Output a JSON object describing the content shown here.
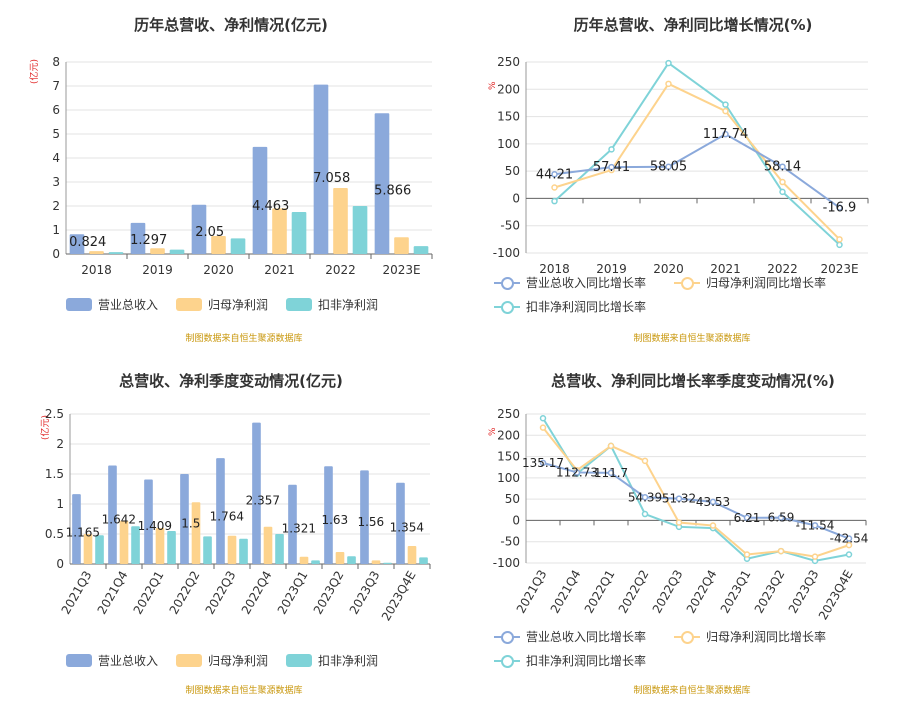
{
  "source_note": "制图数据来自恒生聚源数据库",
  "colors": {
    "revenue": "#8ba9db",
    "net_profit": "#fdd38d",
    "deducted_profit": "#7fd3d8",
    "growth_revenue": "#8ba9db",
    "growth_net": "#fdd38d",
    "growth_deducted": "#7fd3d8",
    "unit_label": "#e02020",
    "source": "#c8960a"
  },
  "chart_data": [
    {
      "id": "annual_values",
      "type": "bar",
      "title": "历年总营收、净利情况(亿元)",
      "ylabel": "(亿元)",
      "categories": [
        "2018",
        "2019",
        "2020",
        "2021",
        "2022",
        "2023E"
      ],
      "series": [
        {
          "name": "营业总收入",
          "values": [
            0.824,
            1.297,
            2.05,
            4.463,
            7.058,
            5.866
          ],
          "labels": [
            "0.824",
            "1.297",
            "2.05",
            "4.463",
            "7.058",
            "5.866"
          ]
        },
        {
          "name": "归母净利润",
          "values": [
            0.12,
            0.24,
            0.75,
            1.9,
            2.75,
            0.7
          ]
        },
        {
          "name": "扣非净利润",
          "values": [
            0.08,
            0.18,
            0.65,
            1.75,
            2.0,
            0.33
          ]
        }
      ],
      "ylim": [
        0,
        8
      ],
      "yticks": [
        0,
        1,
        2,
        3,
        4,
        5,
        6,
        7,
        8
      ],
      "grid": true,
      "legend": "bottom"
    },
    {
      "id": "annual_growth",
      "type": "line",
      "title": "历年总营收、净利同比增长情况(%)",
      "ylabel": "%",
      "categories": [
        "2018",
        "2019",
        "2020",
        "2021",
        "2022",
        "2023E"
      ],
      "series": [
        {
          "name": "营业总收入同比增长率",
          "values": [
            44.21,
            57.41,
            58.05,
            117.74,
            58.14,
            -16.9
          ],
          "labels": [
            "44.21",
            "57.41",
            "58.05",
            "117.74",
            "58.14",
            "-16.9"
          ]
        },
        {
          "name": "归母净利润同比增长率",
          "values": [
            20,
            52,
            210,
            160,
            30,
            -75
          ]
        },
        {
          "name": "扣非净利润同比增长率",
          "values": [
            -5,
            90,
            248,
            172,
            12,
            -85
          ]
        }
      ],
      "ylim": [
        -100,
        250
      ],
      "yticks": [
        -100,
        -50,
        0,
        50,
        100,
        150,
        200,
        250
      ],
      "grid": true,
      "legend": "bottom"
    },
    {
      "id": "quarterly_values",
      "type": "bar",
      "title": "总营收、净利季度变动情况(亿元)",
      "ylabel": "(亿元)",
      "categories": [
        "2021Q3",
        "2021Q4",
        "2022Q1",
        "2022Q2",
        "2022Q3",
        "2022Q4",
        "2023Q1",
        "2023Q2",
        "2023Q3",
        "2023Q4E"
      ],
      "series": [
        {
          "name": "营业总收入",
          "values": [
            1.165,
            1.642,
            1.409,
            1.5,
            1.764,
            2.357,
            1.321,
            1.63,
            1.56,
            1.354
          ],
          "labels": [
            "1.165",
            "1.642",
            "1.409",
            "1.5",
            "1.764",
            "2.357",
            "1.321",
            "1.63",
            "1.56",
            "1.354"
          ]
        },
        {
          "name": "归母净利润",
          "values": [
            0.5,
            0.72,
            0.6,
            1.03,
            0.47,
            0.62,
            0.12,
            0.2,
            0.06,
            0.3
          ]
        },
        {
          "name": "扣非净利润",
          "values": [
            0.48,
            0.63,
            0.55,
            0.46,
            0.42,
            0.5,
            0.06,
            0.13,
            0.02,
            0.11
          ]
        }
      ],
      "ylim": [
        0,
        2.5
      ],
      "yticks": [
        0,
        0.5,
        1,
        1.5,
        2,
        2.5
      ],
      "grid": true,
      "legend": "bottom"
    },
    {
      "id": "quarterly_growth",
      "type": "line",
      "title": "总营收、净利同比增长率季度变动情况(%)",
      "ylabel": "%",
      "categories": [
        "2021Q3",
        "2021Q4",
        "2022Q1",
        "2022Q2",
        "2022Q3",
        "2022Q4",
        "2023Q1",
        "2023Q2",
        "2023Q3",
        "2023Q4E"
      ],
      "series": [
        {
          "name": "营业总收入同比增长率",
          "values": [
            135.17,
            112.73,
            111.7,
            54.39,
            51.32,
            43.53,
            6.21,
            6.59,
            -11.54,
            -42.54
          ],
          "labels": [
            "135.17",
            "112.73",
            "111.7",
            "54.39",
            "51.32",
            "43.53",
            "6.21",
            "6.59",
            "-11.54",
            "-42.54"
          ]
        },
        {
          "name": "归母净利润同比增长率",
          "values": [
            218,
            118,
            175,
            140,
            -5,
            -12,
            -80,
            -72,
            -85,
            -58
          ]
        },
        {
          "name": "扣非净利润同比增长率",
          "values": [
            240,
            110,
            175,
            15,
            -15,
            -18,
            -90,
            -72,
            -95,
            -80
          ]
        }
      ],
      "ylim": [
        -100,
        250
      ],
      "yticks": [
        -100,
        -50,
        0,
        50,
        100,
        150,
        200,
        250
      ],
      "grid": true,
      "legend": "bottom"
    }
  ]
}
